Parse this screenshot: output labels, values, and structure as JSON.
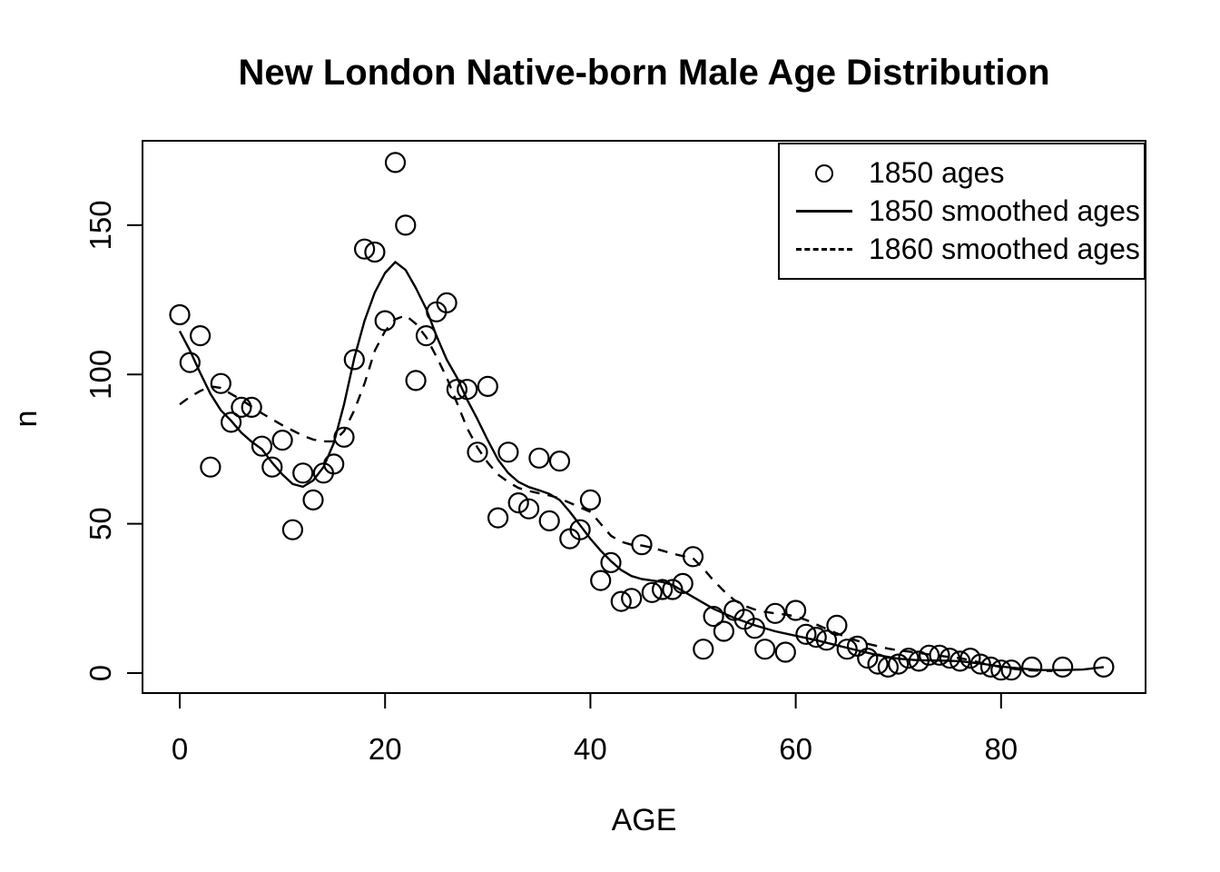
{
  "chart_data": {
    "type": "scatter",
    "title": "New London Native-born Male Age Distribution",
    "xlabel": "AGE",
    "ylabel": "n",
    "xlim": [
      -3.626,
      94.075
    ],
    "ylim": [
      -6.69,
      178.27
    ],
    "x_ticks": [
      0,
      20,
      40,
      60,
      80
    ],
    "y_ticks": [
      0,
      50,
      100,
      150
    ],
    "grid": false,
    "legend_position": "top-right",
    "colors": {
      "foreground": "#000000",
      "background": "#ffffff"
    },
    "legend": [
      {
        "label": "1850 ages",
        "symbol": "open-circle"
      },
      {
        "label": "1850 smoothed ages",
        "symbol": "solid-line"
      },
      {
        "label": "1860 smoothed ages",
        "symbol": "dashed-line"
      }
    ],
    "series": [
      {
        "name": "1850 ages",
        "type": "scatter",
        "marker": "open-circle",
        "points": [
          [
            0,
            120
          ],
          [
            1,
            104
          ],
          [
            2,
            113
          ],
          [
            3,
            69
          ],
          [
            4,
            97
          ],
          [
            5,
            84
          ],
          [
            6,
            89
          ],
          [
            7,
            89
          ],
          [
            8,
            76
          ],
          [
            9,
            69
          ],
          [
            10,
            78
          ],
          [
            11,
            48
          ],
          [
            12,
            67
          ],
          [
            13,
            58
          ],
          [
            14,
            67
          ],
          [
            15,
            70
          ],
          [
            16,
            79
          ],
          [
            17,
            105
          ],
          [
            18,
            142
          ],
          [
            19,
            141
          ],
          [
            20,
            118
          ],
          [
            21,
            171
          ],
          [
            22,
            150
          ],
          [
            23,
            98
          ],
          [
            24,
            113
          ],
          [
            25,
            121
          ],
          [
            26,
            124
          ],
          [
            27,
            95
          ],
          [
            28,
            95
          ],
          [
            29,
            74
          ],
          [
            30,
            96
          ],
          [
            31,
            52
          ],
          [
            32,
            74
          ],
          [
            33,
            57
          ],
          [
            34,
            55
          ],
          [
            35,
            72
          ],
          [
            36,
            51
          ],
          [
            37,
            71
          ],
          [
            38,
            45
          ],
          [
            39,
            48
          ],
          [
            40,
            58
          ],
          [
            41,
            31
          ],
          [
            42,
            37
          ],
          [
            43,
            24
          ],
          [
            44,
            25
          ],
          [
            45,
            43
          ],
          [
            46,
            27
          ],
          [
            47,
            28
          ],
          [
            48,
            28
          ],
          [
            49,
            30
          ],
          [
            50,
            39
          ],
          [
            51,
            8
          ],
          [
            52,
            19
          ],
          [
            53,
            14
          ],
          [
            54,
            21
          ],
          [
            55,
            18
          ],
          [
            56,
            15
          ],
          [
            57,
            8
          ],
          [
            58,
            20
          ],
          [
            59,
            7
          ],
          [
            60,
            21
          ],
          [
            61,
            13
          ],
          [
            62,
            12
          ],
          [
            63,
            11
          ],
          [
            64,
            16
          ],
          [
            65,
            8
          ],
          [
            66,
            9
          ],
          [
            67,
            5
          ],
          [
            68,
            3
          ],
          [
            69,
            2
          ],
          [
            70,
            3
          ],
          [
            71,
            5
          ],
          [
            72,
            4
          ],
          [
            73,
            6
          ],
          [
            74,
            6
          ],
          [
            75,
            5
          ],
          [
            76,
            4
          ],
          [
            77,
            5
          ],
          [
            78,
            3
          ],
          [
            79,
            2
          ],
          [
            80,
            1
          ],
          [
            81,
            1
          ],
          [
            83,
            2
          ],
          [
            86,
            2
          ],
          [
            90,
            2
          ]
        ]
      },
      {
        "name": "1850 smoothed ages",
        "type": "line",
        "line_style": "solid",
        "points": [
          [
            0,
            114.5
          ],
          [
            1,
            108
          ],
          [
            2,
            100.5
          ],
          [
            3,
            93.5
          ],
          [
            4,
            88
          ],
          [
            5,
            84.5
          ],
          [
            6,
            80.5
          ],
          [
            7,
            77.5
          ],
          [
            8,
            75
          ],
          [
            9,
            70.5
          ],
          [
            10,
            66.5
          ],
          [
            11,
            63.3
          ],
          [
            12,
            62.4
          ],
          [
            13,
            64.5
          ],
          [
            14,
            69
          ],
          [
            15,
            77
          ],
          [
            16,
            90
          ],
          [
            17,
            105.5
          ],
          [
            18,
            118
          ],
          [
            19,
            127.5
          ],
          [
            20,
            134
          ],
          [
            21,
            137.7
          ],
          [
            22,
            135
          ],
          [
            23,
            129
          ],
          [
            24,
            122
          ],
          [
            25,
            113
          ],
          [
            26,
            105
          ],
          [
            27,
            99
          ],
          [
            28,
            91.5
          ],
          [
            29,
            85
          ],
          [
            30,
            78
          ],
          [
            31,
            71.5
          ],
          [
            32,
            67
          ],
          [
            33,
            64
          ],
          [
            34,
            62.3
          ],
          [
            35,
            61.2
          ],
          [
            36,
            60
          ],
          [
            37,
            58
          ],
          [
            38,
            54
          ],
          [
            39,
            49.5
          ],
          [
            40,
            45
          ],
          [
            41,
            41
          ],
          [
            42,
            37.5
          ],
          [
            43,
            34.5
          ],
          [
            44,
            32.5
          ],
          [
            45,
            31.5
          ],
          [
            46,
            31
          ],
          [
            47,
            30.5
          ],
          [
            48,
            29.5
          ],
          [
            49,
            27.5
          ],
          [
            50,
            25.5
          ],
          [
            52,
            21.5
          ],
          [
            54,
            18.5
          ],
          [
            56,
            16
          ],
          [
            58,
            14
          ],
          [
            60,
            12.5
          ],
          [
            62,
            11
          ],
          [
            64,
            9.3
          ],
          [
            66,
            7.6
          ],
          [
            68,
            6
          ],
          [
            70,
            4.8
          ],
          [
            72,
            4.3
          ],
          [
            74,
            4.2
          ],
          [
            76,
            4
          ],
          [
            78,
            3.2
          ],
          [
            80,
            2.2
          ],
          [
            82,
            1.5
          ],
          [
            84,
            1
          ],
          [
            86,
            1
          ],
          [
            88,
            1.2
          ],
          [
            90,
            2
          ]
        ]
      },
      {
        "name": "1860 smoothed ages",
        "type": "line",
        "line_style": "dashed",
        "points": [
          [
            0,
            90
          ],
          [
            1,
            92.5
          ],
          [
            2,
            94.5
          ],
          [
            3,
            96
          ],
          [
            4,
            95.5
          ],
          [
            5,
            93.5
          ],
          [
            6,
            91.5
          ],
          [
            8,
            87
          ],
          [
            10,
            83
          ],
          [
            12,
            79.5
          ],
          [
            13,
            78.2
          ],
          [
            14,
            77.6
          ],
          [
            15,
            77.6
          ],
          [
            16,
            81
          ],
          [
            17,
            88
          ],
          [
            18,
            97
          ],
          [
            19,
            108
          ],
          [
            20,
            114.5
          ],
          [
            21,
            118.5
          ],
          [
            22,
            119.8
          ],
          [
            23,
            117
          ],
          [
            24,
            112.5
          ],
          [
            25,
            106
          ],
          [
            26,
            99
          ],
          [
            27,
            90.5
          ],
          [
            28,
            82
          ],
          [
            29,
            75.5
          ],
          [
            30,
            70.5
          ],
          [
            31,
            66.5
          ],
          [
            32,
            64
          ],
          [
            33,
            62
          ],
          [
            34,
            61
          ],
          [
            35,
            60.2
          ],
          [
            36,
            59.5
          ],
          [
            37,
            58.5
          ],
          [
            38,
            57
          ],
          [
            39,
            55.5
          ],
          [
            40,
            54
          ],
          [
            41,
            50
          ],
          [
            42,
            46
          ],
          [
            43,
            44
          ],
          [
            44,
            43
          ],
          [
            45,
            42.7
          ],
          [
            46,
            42
          ],
          [
            47,
            41
          ],
          [
            48,
            40
          ],
          [
            49,
            39.2
          ],
          [
            50,
            38.5
          ],
          [
            51,
            35
          ],
          [
            52,
            31
          ],
          [
            53,
            27.5
          ],
          [
            54,
            24.5
          ],
          [
            55,
            22.5
          ],
          [
            56,
            21.3
          ],
          [
            57,
            20.5
          ],
          [
            58,
            20
          ],
          [
            59,
            19.6
          ],
          [
            60,
            19
          ],
          [
            61,
            17.8
          ],
          [
            62,
            16.3
          ],
          [
            63,
            14.8
          ],
          [
            64,
            13.3
          ],
          [
            65,
            12
          ],
          [
            66,
            10.8
          ],
          [
            67,
            9.8
          ],
          [
            68,
            9
          ],
          [
            69,
            8.2
          ],
          [
            70,
            7.6
          ],
          [
            71,
            7.2
          ],
          [
            72,
            6.8
          ],
          [
            73,
            6.2
          ],
          [
            74,
            5.8
          ],
          [
            75,
            5.4
          ],
          [
            76,
            5
          ],
          [
            77,
            4.3
          ],
          [
            78,
            3.5
          ],
          [
            79,
            2.7
          ],
          [
            80,
            2
          ],
          [
            81,
            1.5
          ],
          [
            82,
            1.1
          ],
          [
            83,
            0.9
          ],
          [
            85,
            0.7
          ]
        ]
      }
    ]
  }
}
